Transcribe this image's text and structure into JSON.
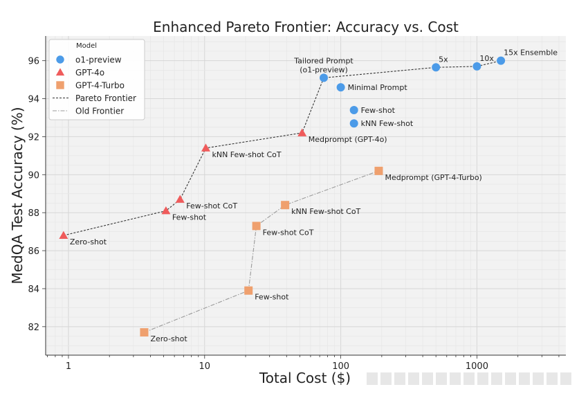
{
  "chart_data": {
    "type": "scatter",
    "title": "Enhanced Pareto Frontier: Accuracy vs. Cost",
    "xlabel": "Total Cost ($)",
    "ylabel": "MedQA Test Accuracy (%)",
    "xscale": "log",
    "xlim": [
      0.68,
      4500
    ],
    "ylim": [
      80.5,
      97.3
    ],
    "xticks": [
      {
        "value": 1,
        "label": "1"
      },
      {
        "value": 10,
        "label": "10"
      },
      {
        "value": 100,
        "label": "100"
      },
      {
        "value": 1000,
        "label": "1000"
      }
    ],
    "yticks": [
      {
        "value": 82,
        "label": "82"
      },
      {
        "value": 84,
        "label": "84"
      },
      {
        "value": 86,
        "label": "86"
      },
      {
        "value": 88,
        "label": "88"
      },
      {
        "value": 90,
        "label": "90"
      },
      {
        "value": 92,
        "label": "92"
      },
      {
        "value": 94,
        "label": "94"
      },
      {
        "value": 96,
        "label": "96"
      }
    ],
    "grid": true,
    "legend": {
      "title": "Model",
      "placement": "top-left",
      "entries": [
        {
          "label": "o1-preview",
          "marker": "circle",
          "color": "#4C9BE8"
        },
        {
          "label": "GPT-4o",
          "marker": "triangle",
          "color": "#EF5B5B"
        },
        {
          "label": "GPT-4-Turbo",
          "marker": "square",
          "color": "#EFA06E"
        },
        {
          "label": "Pareto Frontier",
          "line": "dashed",
          "color": "#333333"
        },
        {
          "label": "Old Frontier",
          "line": "dashdot",
          "color": "#9a9a9a"
        }
      ]
    },
    "series": [
      {
        "name": "o1-preview",
        "marker": "circle",
        "color": "#4C9BE8",
        "points": [
          {
            "x": 75,
            "y": 95.1,
            "label": [
              "Tailored Prompt",
              "(o1-preview)"
            ],
            "label_pos": "above"
          },
          {
            "x": 100,
            "y": 94.6,
            "label": [
              "Minimal Prompt"
            ],
            "label_pos": "right"
          },
          {
            "x": 125,
            "y": 93.4,
            "label": [
              "Few-shot"
            ],
            "label_pos": "right"
          },
          {
            "x": 125,
            "y": 92.7,
            "label": [
              "kNN Few-shot"
            ],
            "label_pos": "right"
          },
          {
            "x": 500,
            "y": 95.65,
            "label": [
              "5x"
            ],
            "label_pos": "above-right"
          },
          {
            "x": 1000,
            "y": 95.7,
            "label": [
              "10x"
            ],
            "label_pos": "above-right"
          },
          {
            "x": 1500,
            "y": 96.0,
            "label": [
              "15x Ensemble"
            ],
            "label_pos": "above-right"
          }
        ]
      },
      {
        "name": "GPT-4o",
        "marker": "triangle",
        "color": "#EF5B5B",
        "points": [
          {
            "x": 0.92,
            "y": 86.8,
            "label": [
              "Zero-shot"
            ],
            "label_pos": "below-right"
          },
          {
            "x": 5.2,
            "y": 88.1,
            "label": [
              "Few-shot"
            ],
            "label_pos": "below-right"
          },
          {
            "x": 6.6,
            "y": 88.7,
            "label": [
              "Few-shot CoT"
            ],
            "label_pos": "below-right"
          },
          {
            "x": 10.2,
            "y": 91.4,
            "label": [
              "kNN Few-shot CoT"
            ],
            "label_pos": "below-right"
          },
          {
            "x": 52,
            "y": 92.2,
            "label": [
              "Medprompt (GPT-4o)"
            ],
            "label_pos": "below-right"
          }
        ]
      },
      {
        "name": "GPT-4-Turbo",
        "marker": "square",
        "color": "#EFA06E",
        "points": [
          {
            "x": 3.6,
            "y": 81.7,
            "label": [
              "Zero-shot"
            ],
            "label_pos": "below-right"
          },
          {
            "x": 21,
            "y": 83.9,
            "label": [
              "Few-shot"
            ],
            "label_pos": "below-right"
          },
          {
            "x": 24,
            "y": 87.3,
            "label": [
              "Few-shot CoT"
            ],
            "label_pos": "below-right"
          },
          {
            "x": 39,
            "y": 88.4,
            "label": [
              "kNN Few-shot CoT"
            ],
            "label_pos": "below-right"
          },
          {
            "x": 190,
            "y": 90.2,
            "label": [
              "Medprompt (GPT-4-Turbo)"
            ],
            "label_pos": "below-right"
          }
        ]
      }
    ],
    "lines": [
      {
        "name": "Pareto Frontier",
        "style": "dashed",
        "color": "#333333",
        "points": [
          [
            0.92,
            86.8
          ],
          [
            5.2,
            88.1
          ],
          [
            6.6,
            88.7
          ],
          [
            10.2,
            91.4
          ],
          [
            52,
            92.2
          ],
          [
            75,
            95.1
          ],
          [
            500,
            95.65
          ],
          [
            1000,
            95.7
          ],
          [
            1500,
            96.0
          ]
        ]
      },
      {
        "name": "Old Frontier",
        "style": "dashdot",
        "color": "#9a9a9a",
        "points": [
          [
            3.6,
            81.7
          ],
          [
            21,
            83.9
          ],
          [
            24,
            87.3
          ],
          [
            39,
            88.4
          ],
          [
            190,
            90.2
          ]
        ]
      }
    ]
  }
}
